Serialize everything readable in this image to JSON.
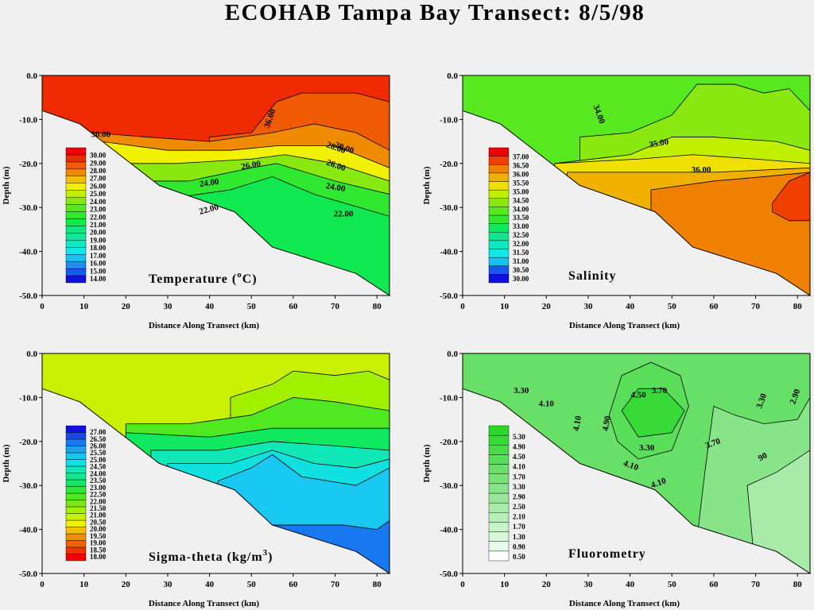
{
  "title": "ECOHAB Tampa Bay Transect: 8/5/98",
  "chart_data": [
    {
      "type": "heatmap",
      "title": "Temperature (°C)",
      "title_text": "Temperature (",
      "title_sup": "o",
      "title_tail": "C)",
      "xlabel": "Distance Along Transect (km)",
      "ylabel": "Depth (m)",
      "xlim": [
        0,
        83
      ],
      "ylim": [
        -50,
        0
      ],
      "xticks": [
        "0",
        "10",
        "20",
        "30",
        "40",
        "50",
        "60",
        "70",
        "80"
      ],
      "yticks": [
        "0.0",
        "-10.0",
        "-20.0",
        "-30.0",
        "-40.0",
        "-50.0"
      ],
      "legend_levels": [
        "14.00",
        "15.00",
        "16.00",
        "17.00",
        "18.00",
        "19.00",
        "20.00",
        "21.00",
        "22.00",
        "23.00",
        "24.00",
        "25.00",
        "26.00",
        "27.00",
        "28.00",
        "29.00",
        "30.00"
      ],
      "legend_colors": [
        "#1010e0",
        "#1858f0",
        "#1c90f0",
        "#18c0f0",
        "#10e8e8",
        "#10e8c0",
        "#10e8a0",
        "#10e880",
        "#10e850",
        "#30e830",
        "#58e820",
        "#88e810",
        "#c0f000",
        "#f0f000",
        "#f0c000",
        "#f08a00",
        "#f05a00",
        "#f02a00",
        "#f00000"
      ],
      "contour_labels": [
        "36.00",
        "28.00",
        "28.00",
        "26.00",
        "26.00",
        "24.00",
        "24.00",
        "22.00",
        "22.00",
        "30.00"
      ]
    },
    {
      "type": "heatmap",
      "title": "Salinity",
      "xlabel": "Distance Along Transect (km)",
      "ylabel": "Depth (m)",
      "xlim": [
        0,
        83
      ],
      "ylim": [
        -50,
        0
      ],
      "xticks": [
        "0",
        "10",
        "20",
        "30",
        "40",
        "50",
        "60",
        "70",
        "80"
      ],
      "yticks": [
        "0.0",
        "-10.0",
        "-20.0",
        "-30.0",
        "-40.0",
        "-50.0"
      ],
      "legend_levels": [
        "30.00",
        "30.50",
        "31.00",
        "31.50",
        "32.00",
        "32.50",
        "33.00",
        "33.50",
        "34.00",
        "34.50",
        "35.00",
        "35.50",
        "36.00",
        "36.50",
        "37.00"
      ],
      "legend_colors": [
        "#1010e0",
        "#1858f0",
        "#18c0f0",
        "#10e8e8",
        "#10e8c0",
        "#10e890",
        "#10e860",
        "#30e830",
        "#58e820",
        "#88e810",
        "#c0f000",
        "#f0e000",
        "#f0b000",
        "#f08000",
        "#f04000",
        "#f00000"
      ],
      "contour_labels": [
        "34.00",
        "35.00",
        "36.00"
      ]
    },
    {
      "type": "heatmap",
      "title": "Sigma-theta (kg/m3)",
      "title_text": "Sigma-theta  (kg/m",
      "title_sup": "3",
      "title_tail": ")",
      "xlabel": "Distance Along Transect (km)",
      "ylabel": "Depth (m)",
      "xlim": [
        0,
        83
      ],
      "ylim": [
        -50,
        0
      ],
      "xticks": [
        "0",
        "10",
        "20",
        "30",
        "40",
        "50",
        "60",
        "70",
        "80"
      ],
      "yticks": [
        "0.0",
        "-10.0",
        "-20.0",
        "-30.0",
        "-40.0",
        "-50.0"
      ],
      "legend_levels": [
        "18.00",
        "18.50",
        "19.00",
        "19.50",
        "20.00",
        "20.50",
        "21.00",
        "21.50",
        "22.00",
        "22.50",
        "23.00",
        "23.50",
        "24.00",
        "24.50",
        "25.00",
        "25.50",
        "26.00",
        "26.50",
        "27.00"
      ],
      "legend_colors": [
        "#f00000",
        "#f03000",
        "#f06000",
        "#f09000",
        "#f0c000",
        "#f0f000",
        "#c8f000",
        "#a0f000",
        "#78e810",
        "#50e820",
        "#30e830",
        "#10e860",
        "#10e890",
        "#10e8b8",
        "#10e0e0",
        "#18c8f0",
        "#1ca0f0",
        "#1878f0",
        "#1848e8",
        "#1010e0"
      ],
      "contour_labels": []
    },
    {
      "type": "heatmap",
      "title": "Fluorometry",
      "xlabel": "Distance Along Transect (km)",
      "ylabel": "Depth (m)",
      "xlim": [
        0,
        83
      ],
      "ylim": [
        -50,
        0
      ],
      "xticks": [
        "0",
        "10",
        "20",
        "30",
        "40",
        "50",
        "60",
        "70",
        "80"
      ],
      "yticks": [
        "0.0",
        "-10.0",
        "-20.0",
        "-30.0",
        "-40.0",
        "-50.0"
      ],
      "legend_levels": [
        "0.50",
        "0.90",
        "1.30",
        "1.70",
        "2.10",
        "2.50",
        "2.90",
        "3.30",
        "3.70",
        "4.10",
        "4.50",
        "4.90",
        "5.30"
      ],
      "legend_colors": [
        "#ffffff",
        "#e8fae8",
        "#d8f6d8",
        "#c8f2c8",
        "#b8eeb8",
        "#a8eaa8",
        "#98e698",
        "#88e488",
        "#78e278",
        "#68e068",
        "#58de58",
        "#48dc48",
        "#38da38",
        "#28d828"
      ],
      "contour_labels": [
        "3.30",
        "4.10",
        "4.10",
        "4.90",
        "4.50",
        "3.70",
        "3.30",
        "4.10",
        "4.10",
        "3.70",
        "3.30",
        "2.90",
        "90"
      ]
    }
  ]
}
